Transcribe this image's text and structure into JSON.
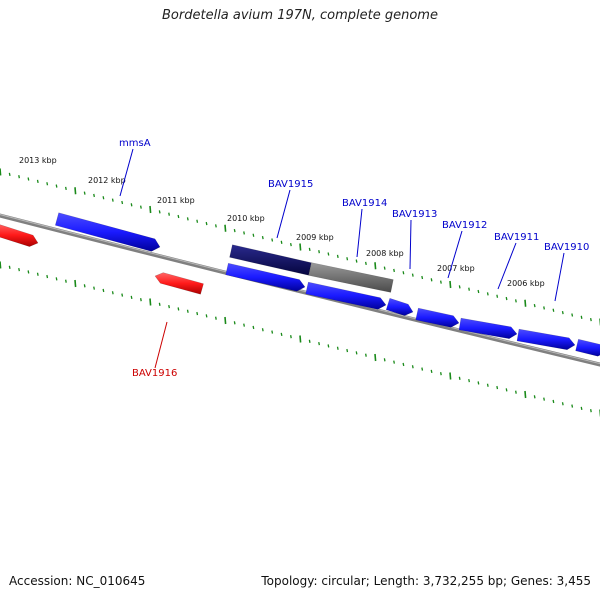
{
  "title": "Bordetella avium 197N, complete genome",
  "footer": {
    "accession": "Accession: NC_010645",
    "summary": "Topology: circular; Length: 3,732,255 bp; Genes: 3,455"
  },
  "colors": {
    "forward_gene": "#1a1aff",
    "reverse_gene": "#ff1a1a",
    "highlight_gene": "#0a0a6e",
    "gray_gene": "#777777",
    "backbone": "#808080",
    "tick": "#1a8a1a",
    "label_forward": "#0000cc",
    "label_reverse": "#cc0000"
  },
  "kbp_scale": [
    "2013 kbp",
    "2012 kbp",
    "2011 kbp",
    "2010 kbp",
    "2009 kbp",
    "2008 kbp",
    "2007 kbp",
    "2006 kbp"
  ],
  "genes": [
    {
      "id": "g-red-left",
      "label": "",
      "strand": "reverse"
    },
    {
      "id": "mmsA",
      "label": "mmsA",
      "strand": "forward"
    },
    {
      "id": "BAV1916",
      "label": "BAV1916",
      "strand": "reverse"
    },
    {
      "id": "BAV1915",
      "label": "BAV1915",
      "strand": "forward"
    },
    {
      "id": "BAV1915-dark",
      "label": "",
      "strand": "forward"
    },
    {
      "id": "BAV1914",
      "label": "BAV1914",
      "strand": "forward"
    },
    {
      "id": "BAV1913",
      "label": "BAV1913",
      "strand": "forward"
    },
    {
      "id": "BAV1912",
      "label": "BAV1912",
      "strand": "forward"
    },
    {
      "id": "BAV1911",
      "label": "BAV1911",
      "strand": "forward"
    },
    {
      "id": "BAV1910",
      "label": "BAV1910",
      "strand": "forward"
    },
    {
      "id": "BAV1909",
      "label": "",
      "strand": "forward"
    }
  ]
}
